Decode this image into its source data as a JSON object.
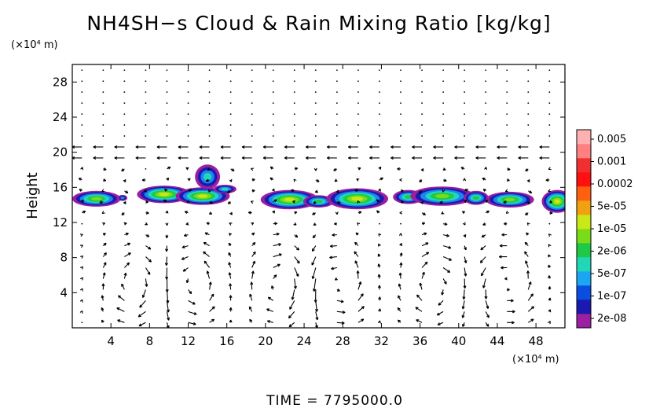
{
  "chart_data": {
    "type": "heatmap",
    "title": "NH4SH−s Cloud & Rain Mixing Ratio [kg/kg]",
    "ylabel": "Height",
    "x_unit": "(×10⁴ m)",
    "y_unit": "(×10⁴ m)",
    "xlim": [
      0,
      51
    ],
    "ylim": [
      0,
      30
    ],
    "x_ticks": [
      4,
      8,
      12,
      16,
      20,
      24,
      28,
      32,
      36,
      40,
      44,
      48
    ],
    "y_ticks": [
      4,
      8,
      12,
      16,
      20,
      24,
      28
    ],
    "grid": false,
    "vector_field": true,
    "colorbar": {
      "placement": "right",
      "labels": [
        "0.005",
        "0.001",
        "0.0002",
        "5e-05",
        "1e-05",
        "2e-06",
        "5e-07",
        "1e-07",
        "2e-08"
      ],
      "colors": [
        "#9b1fa0",
        "#1a1ab0",
        "#0a4ee0",
        "#1aa6f0",
        "#20d8b8",
        "#20c848",
        "#7adc18",
        "#c8e818",
        "#f0a010",
        "#ff6010",
        "#ff1010",
        "#f03030",
        "#ff8080",
        "#ffb0b0"
      ]
    },
    "cloud_regions": [
      {
        "x": 2.5,
        "y": 14.7,
        "rx": 2.5,
        "ry": 0.9,
        "peak": 4
      },
      {
        "x": 5.2,
        "y": 14.8,
        "rx": 0.5,
        "ry": 0.35,
        "peak": 1
      },
      {
        "x": 9.5,
        "y": 15.2,
        "rx": 2.8,
        "ry": 1.0,
        "peak": 5
      },
      {
        "x": 13.5,
        "y": 15.0,
        "rx": 2.8,
        "ry": 1.0,
        "peak": 5
      },
      {
        "x": 14.0,
        "y": 17.2,
        "rx": 1.3,
        "ry": 1.4,
        "peak": 2
      },
      {
        "x": 15.8,
        "y": 15.8,
        "rx": 1.2,
        "ry": 0.5,
        "peak": 2
      },
      {
        "x": 22.5,
        "y": 14.6,
        "rx": 3.0,
        "ry": 1.1,
        "peak": 5
      },
      {
        "x": 25.5,
        "y": 14.4,
        "rx": 1.6,
        "ry": 0.7,
        "peak": 3
      },
      {
        "x": 29.5,
        "y": 14.7,
        "rx": 3.2,
        "ry": 1.2,
        "peak": 5
      },
      {
        "x": 34.8,
        "y": 14.9,
        "rx": 1.6,
        "ry": 0.8,
        "peak": 3
      },
      {
        "x": 38.3,
        "y": 15.0,
        "rx": 3.3,
        "ry": 1.1,
        "peak": 4
      },
      {
        "x": 41.8,
        "y": 14.8,
        "rx": 1.3,
        "ry": 0.8,
        "peak": 3
      },
      {
        "x": 45.3,
        "y": 14.6,
        "rx": 2.5,
        "ry": 0.9,
        "peak": 4
      },
      {
        "x": 50.2,
        "y": 14.4,
        "rx": 1.6,
        "ry": 1.3,
        "peak": 5
      }
    ]
  },
  "footer": {
    "time_label": "TIME  =  7795000.0"
  }
}
